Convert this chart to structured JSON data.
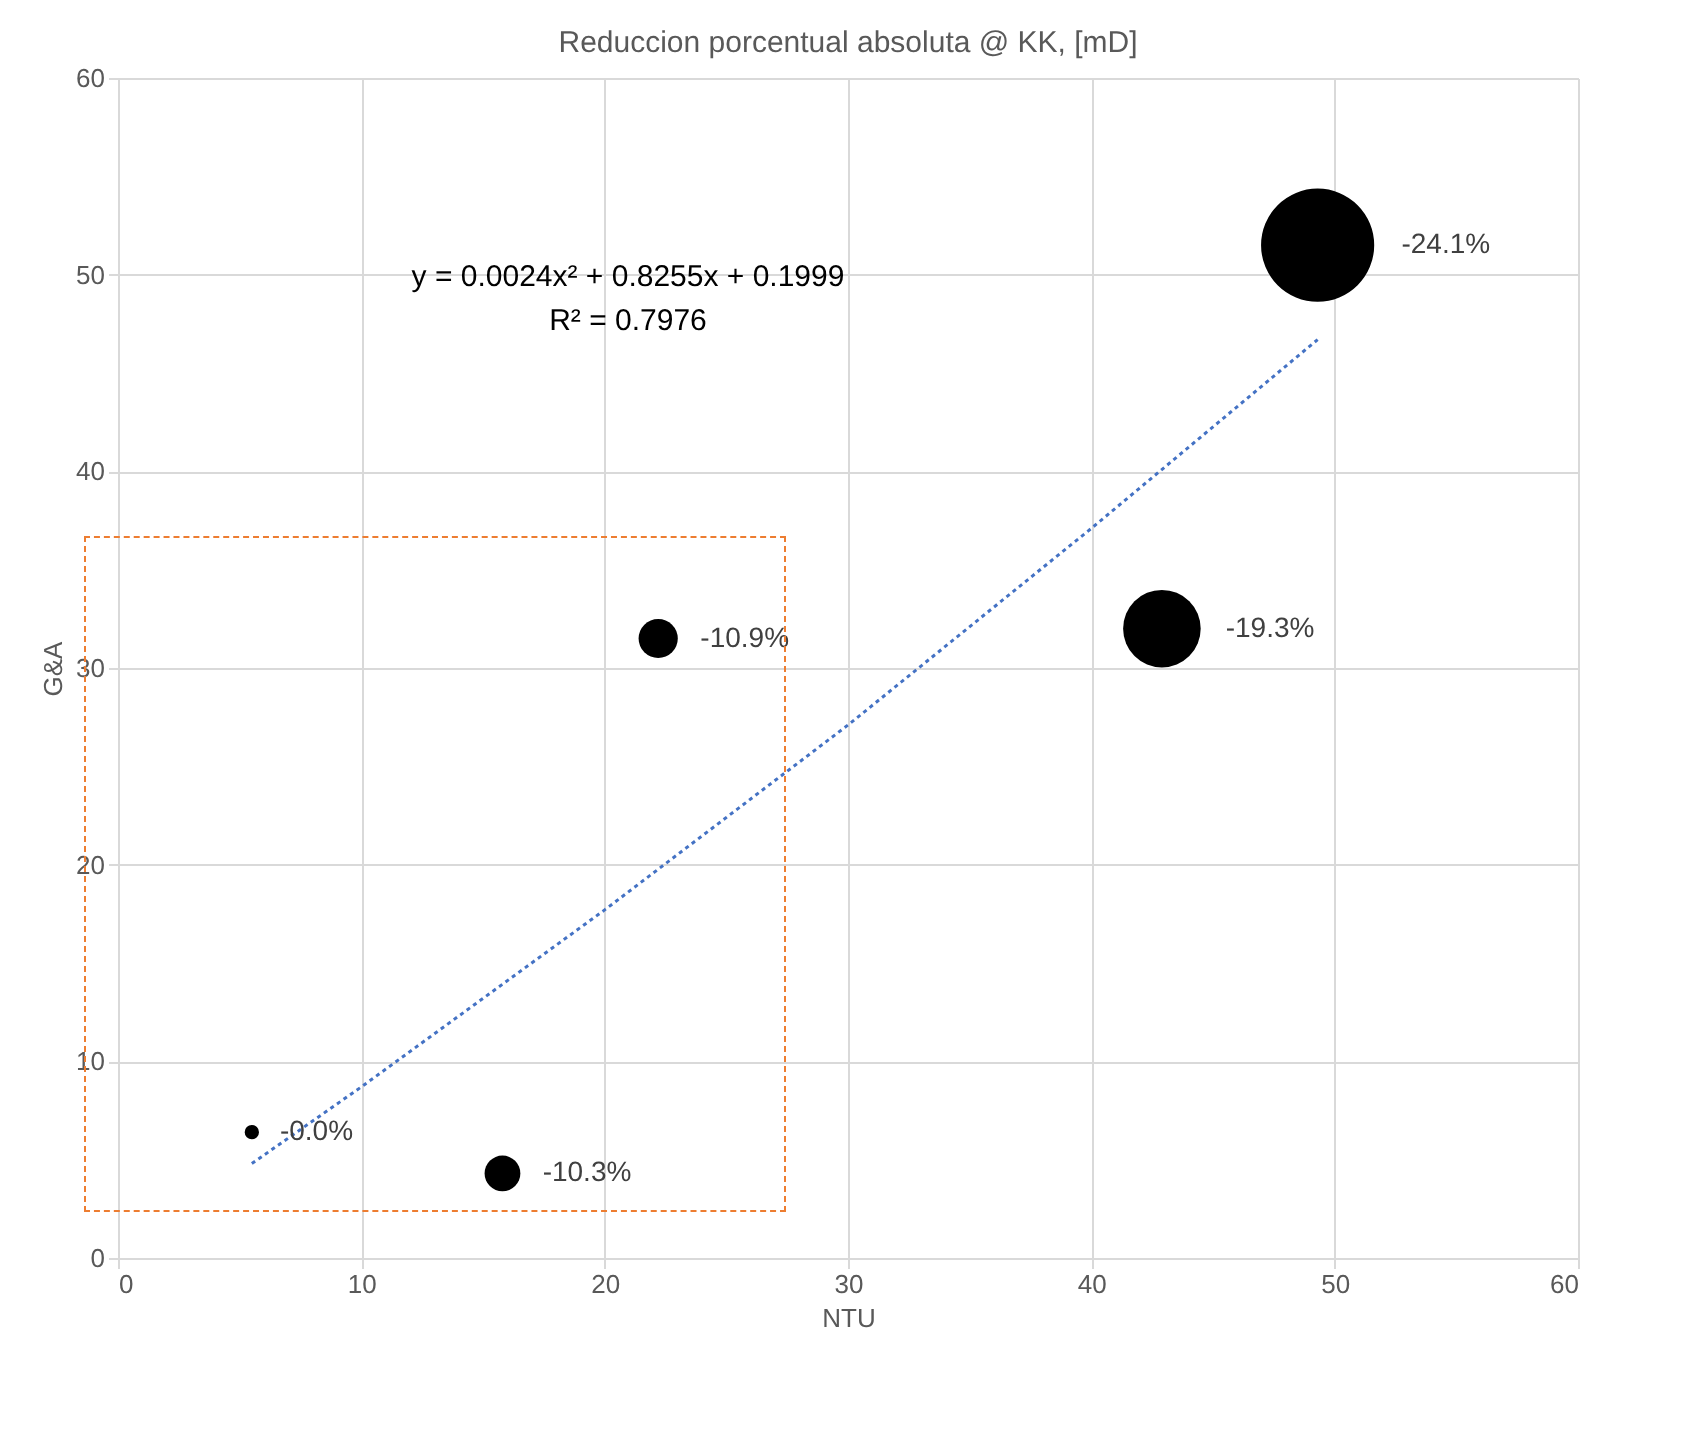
{
  "chart_data": {
    "type": "bubble",
    "title": "Reduccion porcentual absoluta @ KK, [mD]",
    "xlabel": "NTU",
    "ylabel": "G&A",
    "x": [
      5.5,
      15.8,
      22.2,
      42.9,
      49.3
    ],
    "series": [
      {
        "type": "bubble",
        "color": "#000000",
        "values": [
          6.4,
          4.3,
          31.5,
          32.0,
          51.5
        ],
        "sizes": [
          0.016,
          0.1,
          0.12,
          0.47,
          1
        ]
      },
      {
        "type": "line",
        "color": "#4472c4",
        "line_style": "dotted",
        "marker": "none",
        "x": [
          5.5,
          10,
          20,
          30,
          40,
          49.3
        ],
        "values": [
          4.8,
          8.7,
          17.7,
          27.1,
          37.1,
          46.7
        ]
      }
    ],
    "annotations": [
      "y = 0.0024x² + 0.8255x + 0.1999",
      "R² = 0.7976",
      {
        "text": "-0.0%",
        "x": 5.5,
        "y": 6.4
      },
      {
        "text": "-10.3%",
        "x": 15.8,
        "y": 4.3
      },
      {
        "text": "-10.9%",
        "x": 22.2,
        "y": 31.5
      },
      {
        "text": "-19.3%",
        "x": 42.9,
        "y": 32.0
      },
      {
        "text": "-24.1%",
        "x": 49.3,
        "y": 51.5
      }
    ],
    "xlim": [
      0,
      60
    ],
    "xticks": [
      0,
      10,
      20,
      30,
      40,
      50,
      60
    ],
    "ylim": [
      0,
      60
    ],
    "yticks": [
      0,
      10,
      20,
      30,
      40,
      50,
      60
    ],
    "grid": true,
    "legend": false
  }
}
